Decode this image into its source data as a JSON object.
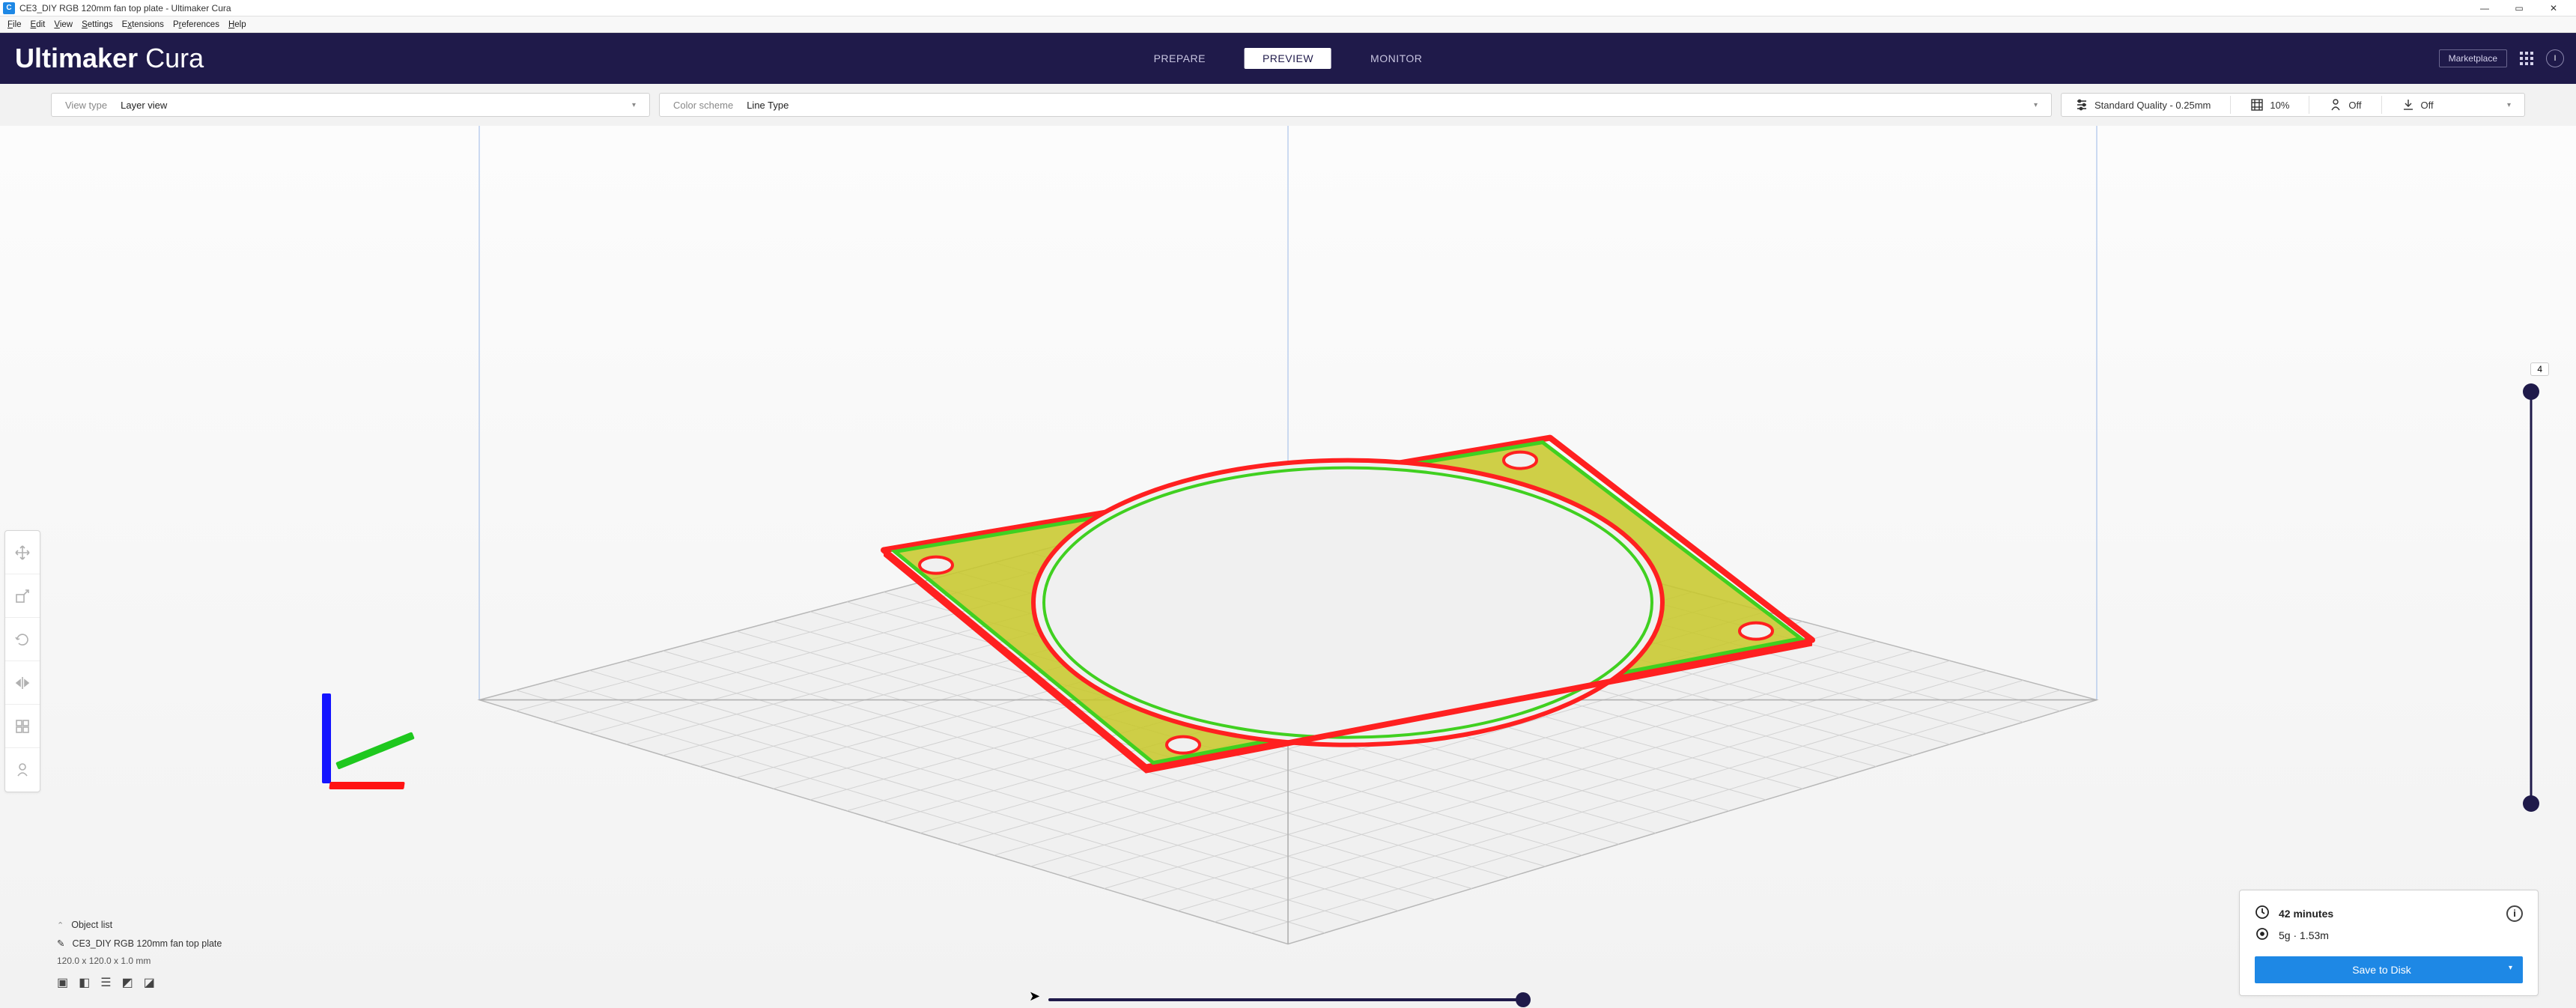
{
  "window": {
    "title": "CE3_DIY RGB 120mm fan top plate - Ultimaker Cura",
    "app_initial": "C"
  },
  "menu": [
    "File",
    "Edit",
    "View",
    "Settings",
    "Extensions",
    "Preferences",
    "Help"
  ],
  "brand": {
    "bold": "Ultimaker",
    "light": "Cura"
  },
  "stages": {
    "prepare": "PREPARE",
    "preview": "PREVIEW",
    "monitor": "MONITOR",
    "active": "preview"
  },
  "marketplace": "Marketplace",
  "profile_initial": "I",
  "viewtype": {
    "label": "View type",
    "value": "Layer view"
  },
  "colorscheme": {
    "label": "Color scheme",
    "value": "Line Type"
  },
  "print_settings": {
    "quality": "Standard Quality - 0.25mm",
    "infill": "10%",
    "support": "Off",
    "adhesion": "Off"
  },
  "layer_slider": {
    "max": "4"
  },
  "object_list": {
    "header": "Object list",
    "item": "CE3_DIY RGB 120mm fan top plate",
    "dims": "120.0 x 120.0 x 1.0 mm"
  },
  "estimate": {
    "time": "42 minutes",
    "material": "5g · 1.53m",
    "button": "Save to Disk"
  },
  "colors": {
    "brandbar": "#1f1a4a",
    "accent": "#1e88e5",
    "wall_outer": "#ff2020",
    "wall_inner": "#40d020",
    "top_skin": "#c8c828"
  }
}
